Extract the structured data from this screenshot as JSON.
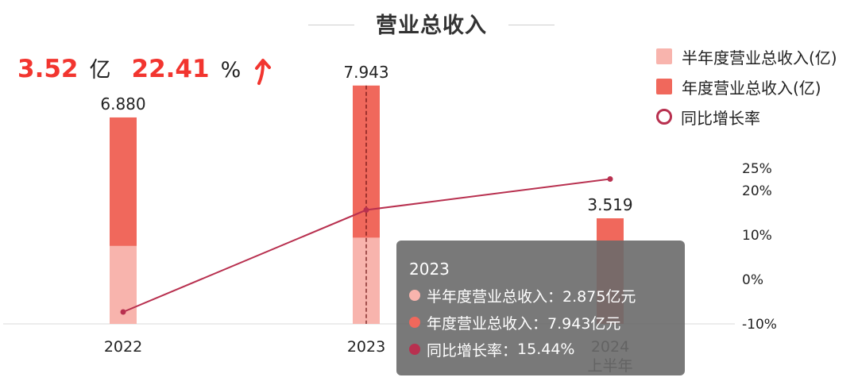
{
  "title": "营业总收入",
  "kpi": {
    "value": "3.52",
    "value_unit": "亿",
    "growth": "22.41",
    "growth_unit": "%",
    "trend_icon": "arrow-up-icon"
  },
  "colors": {
    "half_year": "#f8b4ad",
    "annual": "#f0685c",
    "growth": "#b8304f",
    "accent": "#f2352f"
  },
  "legend": [
    {
      "label": "半年度营业总收入(亿)",
      "kind": "half"
    },
    {
      "label": "年度营业总收入(亿)",
      "kind": "annual"
    },
    {
      "label": "同比增长率",
      "kind": "growth"
    }
  ],
  "chart_data": {
    "type": "bar",
    "title": "营业总收入",
    "categories": [
      "2022",
      "2023",
      "2024 上半年"
    ],
    "category_lines": [
      [
        "2022"
      ],
      [
        "2023"
      ],
      [
        "2024",
        "上半年"
      ]
    ],
    "series": [
      {
        "name": "半年度营业总收入(亿)",
        "type": "bar",
        "values": [
          2.6,
          2.875,
          null
        ]
      },
      {
        "name": "年度营业总收入(亿)",
        "type": "bar",
        "values": [
          6.88,
          7.943,
          3.519
        ]
      },
      {
        "name": "同比增长率",
        "type": "line",
        "axis": "right",
        "values": [
          -7.5,
          15.44,
          22.41
        ]
      }
    ],
    "bar_labels": [
      "6.880",
      "7.943",
      "3.519"
    ],
    "left_axis": {
      "ylim": [
        0,
        10
      ]
    },
    "right_axis": {
      "ylim": [
        -10,
        25
      ],
      "ticks": [
        "25%",
        "20%",
        "10%",
        "0%",
        "-10%"
      ],
      "tick_values": [
        25,
        20,
        10,
        0,
        -10
      ]
    },
    "legend_position": "top-right",
    "grid": false
  },
  "tooltip": {
    "title": "2023",
    "rows": [
      {
        "label": "半年度营业总收入：",
        "value": "2.875亿元",
        "color": "#f8b4ad"
      },
      {
        "label": "年度营业总收入：",
        "value": "7.943亿元",
        "color": "#f0685c"
      },
      {
        "label": "同比增长率：",
        "value": "15.44%",
        "color": "#b8304f"
      }
    ]
  }
}
